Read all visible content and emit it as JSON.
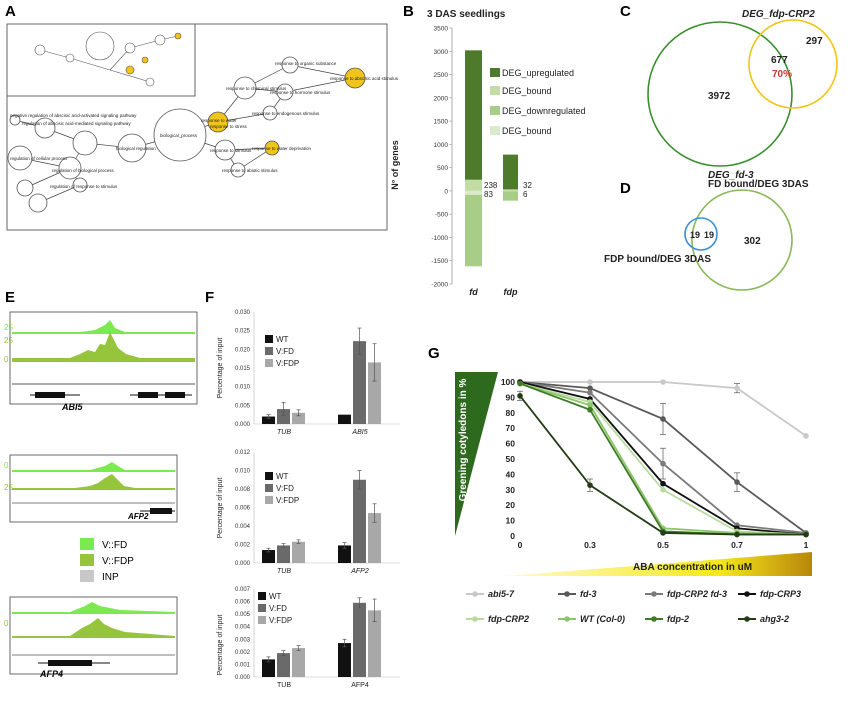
{
  "panels": {
    "A": "A",
    "B": "B",
    "C": "C",
    "D": "D",
    "E": "E",
    "F": "F",
    "G": "G"
  },
  "panel_a": {
    "nodes": [
      "negative regulation of abscisic acid-activated signaling pathway",
      "regulation of abscisic acid-mediated signaling pathway",
      "biological regulation",
      "biological_process",
      "response to organic substance",
      "response to chemical stimulus",
      "response to hormone stimulus",
      "response to abscisic acid stimulus",
      "response to endogenous stimulus",
      "response to water deprivation",
      "response to water",
      "response to stress",
      "response to stimulus",
      "response to abiotic stimulus",
      "regulation of cellular process",
      "regulation of biological process",
      "regulation of response to stimulus"
    ]
  },
  "panel_b": {
    "title": "3 DAS seedlings",
    "ylabel": "N° of genes",
    "legend": [
      "DEG_upregulated",
      "DEG_bound",
      "DEG_downregulated",
      "DEG_bound"
    ],
    "annot_fd": [
      "238",
      "83"
    ],
    "annot_fdp": [
      "32",
      "6"
    ],
    "colors": {
      "up": "#4d7a2b",
      "up_bound": "#c3dba4",
      "down": "#a8cd86",
      "down_bound": "#dbe9cc"
    }
  },
  "panel_c": {
    "label_top": "DEG_fdp-CRP2",
    "label_bottom": "DEG_fd-3",
    "n_left": "3972",
    "n_mid": "677",
    "n_right": "297",
    "pct": "70%"
  },
  "panel_d": {
    "label_top": "FD bound/DEG 3DAS",
    "label_left": "FDP bound/DEG 3DAS",
    "n_left": "19",
    "n_mid": "19",
    "n_right": "302"
  },
  "panel_e": {
    "genes": [
      "ABI5",
      "AFP2",
      "AFP4"
    ],
    "scales": [
      "25",
      "0",
      "25",
      "0",
      "25",
      "0"
    ],
    "legend": [
      "V::FD",
      "V::FDP",
      "INP"
    ]
  },
  "panel_f": {
    "ylabel": "Percentage of input",
    "legend": [
      "WT",
      "V:FD",
      "V:FDP"
    ],
    "legend_3": [
      "WT",
      "V:FD",
      "V:FDP"
    ],
    "x1": [
      "TUB",
      "ABI5"
    ],
    "x2": [
      "TUB",
      "AFP2"
    ],
    "x3": [
      "TUB",
      "AFP4"
    ],
    "yticks1": [
      "0.000",
      "0.005",
      "0.010",
      "0.015",
      "0.020",
      "0.025",
      "0.030"
    ],
    "yticks2": [
      "0.000",
      "0.002",
      "0.004",
      "0.006",
      "0.008",
      "0.010",
      "0.012"
    ],
    "yticks3": [
      "0.000",
      "0.001",
      "0.002",
      "0.003",
      "0.004",
      "0.005",
      "0.006",
      "0.007"
    ]
  },
  "panel_g": {
    "ylabel": "Greening cotyledons in %",
    "xlabel": "ABA concentration  in uM",
    "xticks": [
      "0",
      "0.3",
      "0.5",
      "0.7",
      "1"
    ],
    "yticks": [
      "0",
      "10",
      "20",
      "30",
      "40",
      "50",
      "60",
      "70",
      "80",
      "90",
      "100"
    ],
    "legend": [
      "abi5-7",
      "fd-3",
      "fdp-CRP2 fd-3",
      "fdp-CRP3",
      "fdp-CRP2",
      "WT (Col-0)",
      "fdp-2",
      "ahg3-2"
    ]
  },
  "chart_data": [
    {
      "type": "bar",
      "panel": "B",
      "categories": [
        "fd",
        "fdp"
      ],
      "ylim": [
        -2000,
        3500
      ],
      "yticks": [
        -2000,
        -1500,
        -1000,
        -500,
        0,
        500,
        1000,
        1500,
        2000,
        2500,
        3000,
        3500
      ],
      "series": [
        {
          "name": "DEG_upregulated",
          "values": [
            3020,
            780
          ]
        },
        {
          "name": "DEG_bound",
          "values": [
            238,
            32
          ]
        },
        {
          "name": "DEG_downregulated",
          "values": [
            -1620,
            -210
          ]
        },
        {
          "name": "DEG_bound",
          "values": [
            -83,
            -6
          ]
        }
      ]
    },
    {
      "type": "bar",
      "panel": "F1",
      "categories": [
        "TUB",
        "ABI5"
      ],
      "ylim": [
        0,
        0.03
      ],
      "series": [
        {
          "name": "WT",
          "values": [
            0.002,
            0.0025
          ],
          "err": [
            0.0005,
            0
          ]
        },
        {
          "name": "V:FD",
          "values": [
            0.004,
            0.0222
          ],
          "err": [
            0.0018,
            0.0035
          ]
        },
        {
          "name": "V:FDP",
          "values": [
            0.003,
            0.0165
          ],
          "err": [
            0.0008,
            0.005
          ]
        }
      ]
    },
    {
      "type": "bar",
      "panel": "F2",
      "categories": [
        "TUB",
        "AFP2"
      ],
      "ylim": [
        0,
        0.012
      ],
      "series": [
        {
          "name": "WT",
          "values": [
            0.0014,
            0.0019
          ],
          "err": [
            0.0002,
            0.0003
          ]
        },
        {
          "name": "V:FD",
          "values": [
            0.0019,
            0.009
          ],
          "err": [
            0.0002,
            0.001
          ]
        },
        {
          "name": "V:FDP",
          "values": [
            0.0023,
            0.0054
          ],
          "err": [
            0.0002,
            0.001
          ]
        }
      ]
    },
    {
      "type": "bar",
      "panel": "F3",
      "categories": [
        "TUB",
        "AFP4"
      ],
      "ylim": [
        0,
        0.007
      ],
      "series": [
        {
          "name": "WT",
          "values": [
            0.0014,
            0.0027
          ],
          "err": [
            0.0002,
            0.0003
          ]
        },
        {
          "name": "V:FD",
          "values": [
            0.0019,
            0.0059
          ],
          "err": [
            0.0002,
            0.0004
          ]
        },
        {
          "name": "V:FDP",
          "values": [
            0.0023,
            0.0053
          ],
          "err": [
            0.0002,
            0.0009
          ]
        }
      ]
    },
    {
      "type": "line",
      "panel": "G",
      "x": [
        "0",
        "0.3",
        "0.5",
        "0.7",
        "1"
      ],
      "ylim": [
        0,
        100
      ],
      "series": [
        {
          "name": "abi5-7",
          "values": [
            100,
            100,
            100,
            96,
            65
          ],
          "err": [
            0,
            0,
            0,
            3,
            0
          ],
          "color": "#c8c8c8"
        },
        {
          "name": "fd-3",
          "values": [
            100,
            96,
            76,
            35,
            2
          ],
          "err": [
            0,
            0,
            10,
            6,
            0
          ],
          "color": "#5a5a5a"
        },
        {
          "name": "fdp-CRP2 fd-3",
          "values": [
            100,
            93,
            47,
            7,
            2
          ],
          "err": [
            0,
            0,
            10,
            0,
            0
          ],
          "color": "#7a7a7a"
        },
        {
          "name": "fdp-CRP3",
          "values": [
            100,
            89,
            34,
            5,
            1
          ],
          "err": [
            0,
            0,
            0,
            0,
            0
          ],
          "color": "#111111"
        },
        {
          "name": "fdp-CRP2",
          "values": [
            99,
            87,
            30,
            3,
            1
          ],
          "err": [
            0,
            0,
            0,
            0,
            0
          ],
          "color": "#b8dca0"
        },
        {
          "name": "WT (Col-0)",
          "values": [
            99,
            85,
            5,
            2,
            1
          ],
          "err": [
            0,
            0,
            0,
            0,
            0
          ],
          "color": "#8ac76a"
        },
        {
          "name": "fdp-2",
          "values": [
            99,
            82,
            3,
            1,
            1
          ],
          "err": [
            0,
            0,
            0,
            0,
            0
          ],
          "color": "#3f7a25"
        },
        {
          "name": "ahg3-2",
          "values": [
            91,
            33,
            2,
            1,
            1
          ],
          "err": [
            3,
            4,
            0,
            0,
            0
          ],
          "color": "#243d15"
        }
      ]
    }
  ]
}
